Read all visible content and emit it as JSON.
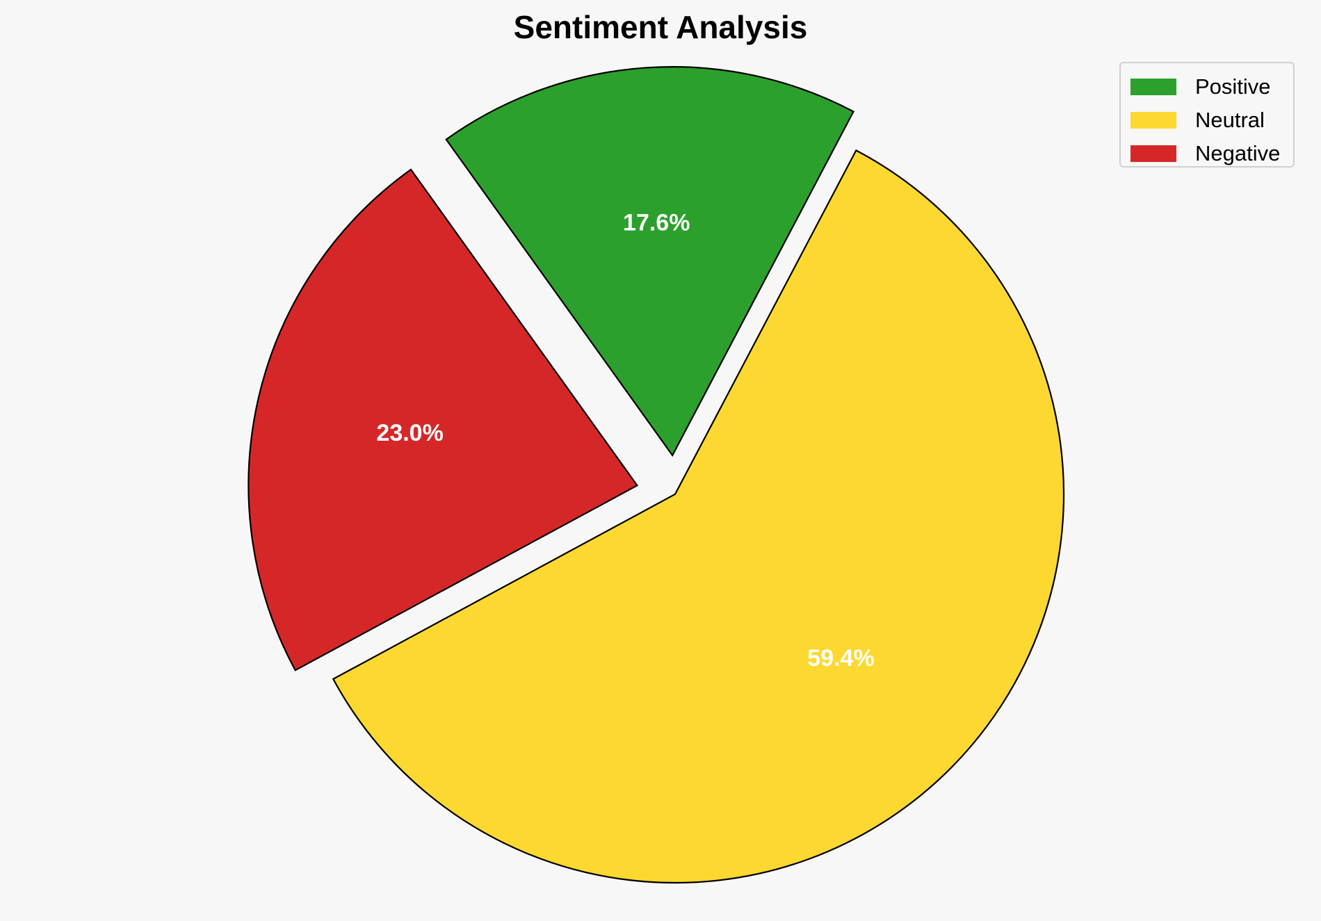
{
  "chart_data": {
    "type": "pie",
    "title": "Sentiment Analysis",
    "categories": [
      "Positive",
      "Neutral",
      "Negative"
    ],
    "values": [
      17.6,
      59.4,
      23.0
    ],
    "value_labels": [
      "17.6%",
      "59.4%",
      "23.0%"
    ],
    "colors": [
      "#2ca02c",
      "#fdd830",
      "#d62728"
    ],
    "exploded": [
      true,
      false,
      true
    ],
    "edge_color": "#000000",
    "legend": {
      "placement": "top-right",
      "entries": [
        "Positive",
        "Neutral",
        "Negative"
      ]
    }
  }
}
